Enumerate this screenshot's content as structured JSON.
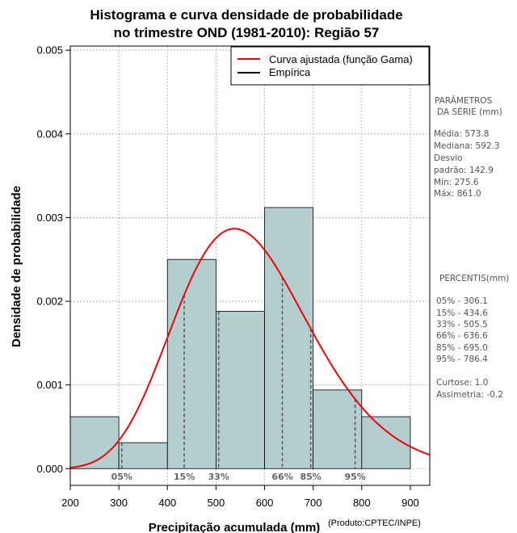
{
  "chart_data": {
    "type": "bar",
    "title_line1": "Histograma e curva densidade de probabilidade",
    "title_line2": "no trimestre OND (1981-2010): Região 57",
    "xlabel": "Precipitação acumulada (mm)",
    "ylabel": "Densidade de probabilidade",
    "credit": "(Produto:CPTEC/INPE)",
    "xlim": [
      200,
      940
    ],
    "ylim": [
      -0.0002,
      0.00505
    ],
    "x_ticks": [
      200,
      300,
      400,
      500,
      600,
      700,
      800,
      900
    ],
    "y_ticks": [
      0.0,
      0.001,
      0.002,
      0.003,
      0.004,
      0.005
    ],
    "y_tick_labels": [
      "0.000",
      "0.001",
      "0.002",
      "0.003",
      "0.004",
      "0.005"
    ],
    "bins": [
      {
        "from": 200,
        "to": 300,
        "density": 0.00062
      },
      {
        "from": 300,
        "to": 400,
        "density": 0.00031
      },
      {
        "from": 400,
        "to": 500,
        "density": 0.0025
      },
      {
        "from": 500,
        "to": 600,
        "density": 0.00188
      },
      {
        "from": 600,
        "to": 700,
        "density": 0.00312
      },
      {
        "from": 700,
        "to": 800,
        "density": 0.00094
      },
      {
        "from": 800,
        "to": 900,
        "density": 0.00062
      }
    ],
    "gamma_fit": {
      "mean": 573.8,
      "sd": 142.9
    },
    "legend": [
      "Curva ajustada (função Gama)",
      "Empírica"
    ],
    "percentile_marks": [
      {
        "label": "05%",
        "value": 306.1
      },
      {
        "label": "15%",
        "value": 434.6
      },
      {
        "label": "33%",
        "value": 505.5
      },
      {
        "label": "66%",
        "value": 636.6
      },
      {
        "label": "85%",
        "value": 695.0
      },
      {
        "label": "95%",
        "value": 786.4
      }
    ],
    "colors": {
      "bar_fill": "#b4cdce",
      "curve": "#e8000b",
      "grid": "#aaaaaa",
      "percentile_line": "#555555"
    }
  },
  "side_panel": {
    "params_title1": "PARÂMETROS",
    "params_title2": "DA SÉRIE (mm)",
    "media": "Média:  573.8",
    "mediana": "Mediana:  592.3",
    "desvio1": "Desvio",
    "desvio2": "padrão:  142.9",
    "min": "Mín:  275.6",
    "max": "Máx:  861.0",
    "percentis_title": "PERCENTIS(mm)",
    "p05": "05% -  306.1",
    "p15": "15% -  434.6",
    "p33": "33% -  505.5",
    "p66": "66% -  636.6",
    "p85": "85% -  695.0",
    "p95": "95% -  786.4",
    "curtose": "Curtose:  1.0",
    "assimetria": "Assimetria:  -0.2"
  }
}
